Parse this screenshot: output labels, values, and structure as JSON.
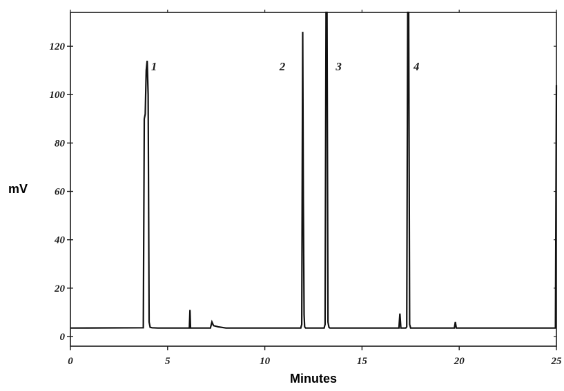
{
  "chart_data": {
    "type": "line",
    "title": "",
    "xlabel": "Minutes",
    "ylabel": "mV",
    "xlim": [
      0,
      25
    ],
    "ylim": [
      -4,
      134
    ],
    "x_ticks": [
      0,
      5,
      10,
      15,
      20,
      25
    ],
    "y_ticks": [
      0,
      20,
      40,
      60,
      80,
      100,
      120
    ],
    "x_tick_labels": [
      "0",
      "5",
      "10",
      "15",
      "20",
      "25"
    ],
    "y_tick_labels": [
      "0",
      "20",
      "40",
      "60",
      "80",
      "100",
      "120"
    ],
    "grid": false,
    "baseline": 3.5,
    "series": [
      {
        "x": [
          0,
          3.75,
          3.8,
          3.85,
          3.9,
          3.95,
          4.0,
          4.05,
          4.1,
          4.2,
          4.5,
          6.12,
          6.15,
          6.18,
          6.21,
          7.2,
          7.28,
          7.36,
          7.6,
          8.0,
          11.85,
          11.9,
          11.95,
          11.98,
          12.02,
          12.05,
          12.1,
          12.15,
          13.05,
          13.1,
          13.15,
          13.2,
          13.25,
          13.3,
          13.35,
          16.9,
          16.95,
          17.0,
          17.05,
          17.25,
          17.3,
          17.35,
          17.4,
          17.45,
          17.5,
          19.75,
          19.8,
          19.85,
          24.95,
          25.0
        ],
        "y": [
          3.5,
          3.6,
          90,
          92,
          110,
          114,
          100,
          6,
          3.8,
          3.6,
          3.5,
          3.5,
          11,
          3.5,
          3.5,
          3.5,
          6,
          4.5,
          4,
          3.5,
          3.5,
          5,
          126,
          57,
          9,
          4,
          3.5,
          3.5,
          3.5,
          5,
          134,
          134,
          6,
          3.8,
          3.5,
          3.5,
          9.5,
          3.5,
          3.5,
          3.5,
          4,
          134,
          134,
          5,
          3.5,
          3.5,
          6,
          3.5,
          3.5,
          104
        ]
      }
    ],
    "annotations": [
      {
        "text": "1",
        "x": 4.3,
        "y": 110
      },
      {
        "text": "2",
        "x": 10.9,
        "y": 110
      },
      {
        "text": "3",
        "x": 13.8,
        "y": 110
      },
      {
        "text": "4",
        "x": 17.8,
        "y": 110
      }
    ]
  }
}
